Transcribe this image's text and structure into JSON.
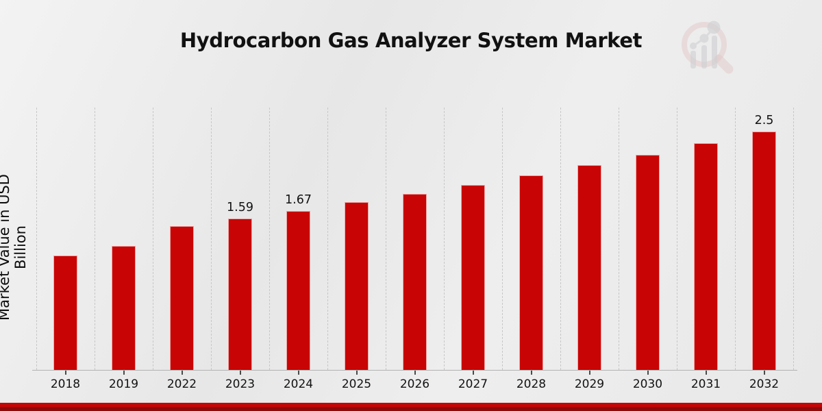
{
  "title": "Hydrocarbon Gas Analyzer System Market",
  "y_axis_title": "Market Value in USD Billion",
  "colors": {
    "bar": "#c90404",
    "footer_stripe_top": "#c40606",
    "footer_stripe_bottom": "#8e0909",
    "background": "#e9e9e9",
    "gridline": "#c7c7c7"
  },
  "logo": {
    "name": "magnifier-bar-chart-watermark"
  },
  "chart_data": {
    "type": "bar",
    "title": "Hydrocarbon Gas Analyzer System Market",
    "xlabel": "",
    "ylabel": "Market Value in USD Billion",
    "categories": [
      "2018",
      "2019",
      "2022",
      "2023",
      "2024",
      "2025",
      "2026",
      "2027",
      "2028",
      "2029",
      "2030",
      "2031",
      "2032"
    ],
    "values": [
      1.2,
      1.3,
      1.51,
      1.59,
      1.67,
      1.76,
      1.85,
      1.94,
      2.04,
      2.15,
      2.26,
      2.38,
      2.5
    ],
    "data_labels": [
      "",
      "",
      "",
      "1.59",
      "1.67",
      "",
      "",
      "",
      "",
      "",
      "",
      "",
      "2.5"
    ],
    "ylim": [
      0,
      2.77
    ],
    "grid": "vertical-dashed",
    "legend": "none",
    "bar_color": "#c90404"
  }
}
